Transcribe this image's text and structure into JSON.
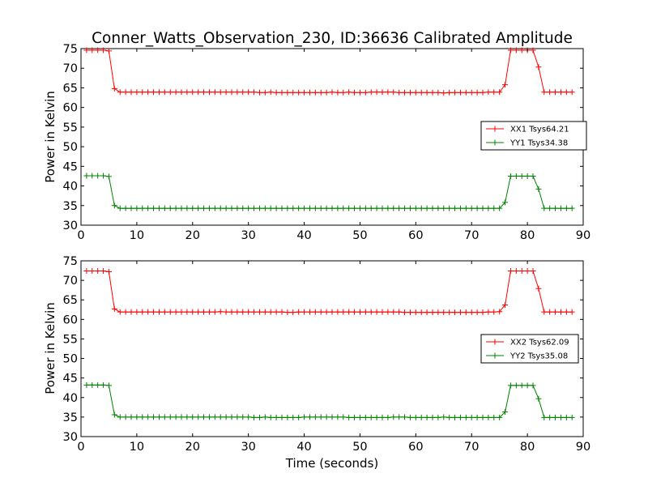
{
  "chart_data": [
    {
      "type": "line",
      "title": "Conner_Watts_Observation_230, ID:36636 Calibrated Amplitude",
      "xlabel": "",
      "ylabel": "Power in Kelvin",
      "xlim": [
        0,
        90
      ],
      "ylim": [
        30,
        75
      ],
      "xticks": [
        "0",
        "10",
        "20",
        "30",
        "40",
        "50",
        "60",
        "70",
        "80",
        "90"
      ],
      "yticks": [
        "30",
        "35",
        "40",
        "45",
        "50",
        "55",
        "60",
        "65",
        "70",
        "75"
      ],
      "legend_position": "right",
      "grid": false,
      "x": [
        1,
        2,
        3,
        4,
        5,
        6,
        7,
        8,
        9,
        10,
        11,
        12,
        13,
        14,
        15,
        16,
        17,
        18,
        19,
        20,
        21,
        22,
        23,
        24,
        25,
        26,
        27,
        28,
        29,
        30,
        31,
        32,
        33,
        34,
        35,
        36,
        37,
        38,
        39,
        40,
        41,
        42,
        43,
        44,
        45,
        46,
        47,
        48,
        49,
        50,
        51,
        52,
        53,
        54,
        55,
        56,
        57,
        58,
        59,
        60,
        61,
        62,
        63,
        64,
        65,
        66,
        67,
        68,
        69,
        70,
        71,
        72,
        73,
        74,
        75,
        76,
        77,
        78,
        79,
        80,
        81,
        82,
        83,
        84,
        85,
        86,
        87,
        88
      ],
      "series": [
        {
          "name": "XX1 Tsys64.21",
          "color": "#ff0000",
          "values": [
            74.6,
            74.6,
            74.6,
            74.6,
            74.4,
            64.8,
            63.9,
            63.9,
            63.9,
            63.9,
            63.9,
            63.9,
            63.9,
            63.9,
            63.9,
            63.9,
            63.9,
            63.9,
            63.9,
            63.9,
            63.9,
            63.9,
            63.9,
            63.9,
            63.9,
            63.9,
            63.9,
            63.9,
            63.9,
            63.9,
            63.9,
            63.8,
            63.8,
            63.9,
            63.8,
            63.8,
            63.8,
            63.8,
            63.8,
            63.8,
            63.8,
            63.8,
            63.8,
            63.8,
            63.9,
            63.8,
            63.8,
            63.9,
            63.8,
            63.8,
            63.8,
            63.9,
            63.9,
            63.9,
            63.9,
            63.9,
            63.8,
            63.8,
            63.8,
            63.8,
            63.8,
            63.8,
            63.8,
            63.8,
            63.7,
            63.8,
            63.8,
            63.8,
            63.8,
            63.8,
            63.8,
            63.8,
            63.9,
            63.9,
            63.9,
            65.8,
            74.6,
            74.6,
            74.6,
            74.6,
            74.6,
            70.3,
            63.9,
            63.9,
            63.9,
            63.9,
            63.9,
            63.9
          ]
        },
        {
          "name": "YY1 Tsys34.38",
          "color": "#008000",
          "values": [
            42.6,
            42.6,
            42.6,
            42.6,
            42.4,
            35.0,
            34.3,
            34.3,
            34.3,
            34.3,
            34.3,
            34.3,
            34.3,
            34.3,
            34.3,
            34.3,
            34.3,
            34.3,
            34.3,
            34.3,
            34.3,
            34.3,
            34.3,
            34.3,
            34.3,
            34.3,
            34.3,
            34.3,
            34.3,
            34.3,
            34.3,
            34.3,
            34.3,
            34.3,
            34.3,
            34.3,
            34.3,
            34.3,
            34.3,
            34.3,
            34.3,
            34.3,
            34.3,
            34.3,
            34.3,
            34.3,
            34.3,
            34.3,
            34.3,
            34.3,
            34.3,
            34.3,
            34.3,
            34.3,
            34.3,
            34.3,
            34.3,
            34.3,
            34.3,
            34.3,
            34.3,
            34.3,
            34.3,
            34.3,
            34.3,
            34.3,
            34.3,
            34.3,
            34.3,
            34.3,
            34.3,
            34.3,
            34.3,
            34.3,
            34.3,
            35.8,
            42.5,
            42.5,
            42.5,
            42.5,
            42.5,
            39.2,
            34.3,
            34.3,
            34.3,
            34.3,
            34.3,
            34.3
          ]
        }
      ]
    },
    {
      "type": "line",
      "title": "",
      "xlabel": "Time (seconds)",
      "ylabel": "Power in Kelvin",
      "xlim": [
        0,
        90
      ],
      "ylim": [
        30,
        75
      ],
      "xticks": [
        "0",
        "10",
        "20",
        "30",
        "40",
        "50",
        "60",
        "70",
        "80",
        "90"
      ],
      "yticks": [
        "30",
        "35",
        "40",
        "45",
        "50",
        "55",
        "60",
        "65",
        "70",
        "75"
      ],
      "legend_position": "right",
      "grid": false,
      "x": [
        1,
        2,
        3,
        4,
        5,
        6,
        7,
        8,
        9,
        10,
        11,
        12,
        13,
        14,
        15,
        16,
        17,
        18,
        19,
        20,
        21,
        22,
        23,
        24,
        25,
        26,
        27,
        28,
        29,
        30,
        31,
        32,
        33,
        34,
        35,
        36,
        37,
        38,
        39,
        40,
        41,
        42,
        43,
        44,
        45,
        46,
        47,
        48,
        49,
        50,
        51,
        52,
        53,
        54,
        55,
        56,
        57,
        58,
        59,
        60,
        61,
        62,
        63,
        64,
        65,
        66,
        67,
        68,
        69,
        70,
        71,
        72,
        73,
        74,
        75,
        76,
        77,
        78,
        79,
        80,
        81,
        82,
        83,
        84,
        85,
        86,
        87,
        88
      ],
      "series": [
        {
          "name": "XX2 Tsys62.09",
          "color": "#ff0000",
          "values": [
            72.4,
            72.4,
            72.4,
            72.4,
            72.2,
            62.7,
            61.9,
            61.9,
            61.9,
            61.9,
            61.9,
            61.9,
            61.9,
            61.9,
            61.9,
            61.9,
            61.9,
            61.9,
            61.9,
            61.9,
            61.9,
            61.9,
            61.9,
            61.9,
            62.0,
            61.9,
            61.9,
            61.9,
            61.9,
            61.9,
            61.9,
            61.9,
            61.9,
            61.9,
            61.9,
            61.9,
            61.8,
            61.8,
            61.9,
            61.9,
            61.9,
            61.9,
            61.9,
            61.9,
            61.9,
            61.9,
            61.9,
            61.9,
            61.9,
            61.9,
            61.9,
            61.9,
            61.9,
            61.9,
            61.9,
            61.9,
            61.9,
            61.8,
            61.8,
            61.8,
            61.8,
            61.8,
            61.8,
            61.8,
            61.8,
            61.8,
            61.8,
            61.8,
            61.8,
            61.8,
            61.8,
            61.8,
            61.9,
            61.9,
            62.0,
            63.7,
            72.4,
            72.4,
            72.4,
            72.4,
            72.4,
            67.9,
            61.9,
            61.9,
            61.9,
            61.9,
            61.9,
            61.9
          ]
        },
        {
          "name": "YY2 Tsys35.08",
          "color": "#008000",
          "values": [
            43.2,
            43.2,
            43.2,
            43.2,
            43.1,
            35.6,
            35.0,
            35.0,
            35.0,
            35.0,
            35.0,
            35.0,
            35.0,
            35.0,
            35.0,
            35.0,
            35.0,
            35.0,
            35.0,
            35.0,
            35.0,
            35.0,
            35.0,
            35.0,
            35.0,
            35.0,
            35.0,
            35.0,
            35.0,
            35.0,
            34.9,
            34.9,
            35.0,
            34.9,
            34.9,
            34.9,
            34.9,
            34.9,
            34.9,
            35.0,
            35.0,
            35.0,
            35.0,
            35.0,
            35.0,
            35.0,
            35.0,
            34.9,
            34.9,
            34.9,
            34.9,
            34.9,
            34.9,
            34.9,
            34.9,
            35.0,
            35.0,
            35.0,
            34.9,
            34.9,
            34.9,
            34.9,
            34.9,
            34.9,
            35.0,
            34.9,
            34.9,
            34.9,
            34.9,
            34.9,
            34.9,
            34.9,
            34.9,
            34.9,
            34.9,
            36.3,
            43.1,
            43.1,
            43.1,
            43.1,
            43.1,
            39.7,
            34.9,
            34.9,
            34.9,
            34.9,
            34.9,
            34.9
          ]
        }
      ]
    }
  ]
}
